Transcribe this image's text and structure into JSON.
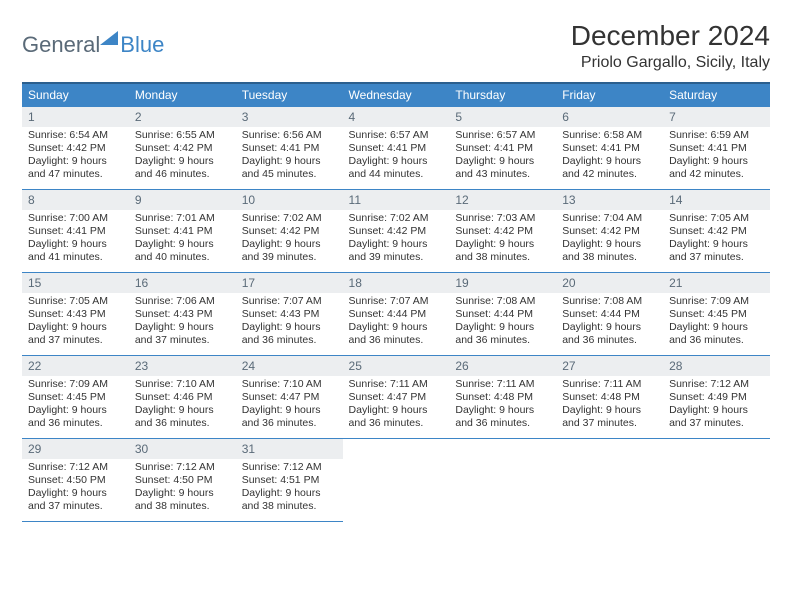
{
  "logo": {
    "text1": "General",
    "text2": "Blue"
  },
  "title": "December 2024",
  "location": "Priolo Gargallo, Sicily, Italy",
  "weekdays": [
    "Sunday",
    "Monday",
    "Tuesday",
    "Wednesday",
    "Thursday",
    "Friday",
    "Saturday"
  ],
  "colors": {
    "header_bg": "#3d85c6",
    "header_text": "#ffffff",
    "daynum_bg": "#eceef0",
    "daynum_text": "#5a6a78",
    "border": "#3d85c6",
    "body_text": "#333333"
  },
  "weeks": [
    [
      {
        "n": "1",
        "sr": "Sunrise: 6:54 AM",
        "ss": "Sunset: 4:42 PM",
        "d1": "Daylight: 9 hours",
        "d2": "and 47 minutes."
      },
      {
        "n": "2",
        "sr": "Sunrise: 6:55 AM",
        "ss": "Sunset: 4:42 PM",
        "d1": "Daylight: 9 hours",
        "d2": "and 46 minutes."
      },
      {
        "n": "3",
        "sr": "Sunrise: 6:56 AM",
        "ss": "Sunset: 4:41 PM",
        "d1": "Daylight: 9 hours",
        "d2": "and 45 minutes."
      },
      {
        "n": "4",
        "sr": "Sunrise: 6:57 AM",
        "ss": "Sunset: 4:41 PM",
        "d1": "Daylight: 9 hours",
        "d2": "and 44 minutes."
      },
      {
        "n": "5",
        "sr": "Sunrise: 6:57 AM",
        "ss": "Sunset: 4:41 PM",
        "d1": "Daylight: 9 hours",
        "d2": "and 43 minutes."
      },
      {
        "n": "6",
        "sr": "Sunrise: 6:58 AM",
        "ss": "Sunset: 4:41 PM",
        "d1": "Daylight: 9 hours",
        "d2": "and 42 minutes."
      },
      {
        "n": "7",
        "sr": "Sunrise: 6:59 AM",
        "ss": "Sunset: 4:41 PM",
        "d1": "Daylight: 9 hours",
        "d2": "and 42 minutes."
      }
    ],
    [
      {
        "n": "8",
        "sr": "Sunrise: 7:00 AM",
        "ss": "Sunset: 4:41 PM",
        "d1": "Daylight: 9 hours",
        "d2": "and 41 minutes."
      },
      {
        "n": "9",
        "sr": "Sunrise: 7:01 AM",
        "ss": "Sunset: 4:41 PM",
        "d1": "Daylight: 9 hours",
        "d2": "and 40 minutes."
      },
      {
        "n": "10",
        "sr": "Sunrise: 7:02 AM",
        "ss": "Sunset: 4:42 PM",
        "d1": "Daylight: 9 hours",
        "d2": "and 39 minutes."
      },
      {
        "n": "11",
        "sr": "Sunrise: 7:02 AM",
        "ss": "Sunset: 4:42 PM",
        "d1": "Daylight: 9 hours",
        "d2": "and 39 minutes."
      },
      {
        "n": "12",
        "sr": "Sunrise: 7:03 AM",
        "ss": "Sunset: 4:42 PM",
        "d1": "Daylight: 9 hours",
        "d2": "and 38 minutes."
      },
      {
        "n": "13",
        "sr": "Sunrise: 7:04 AM",
        "ss": "Sunset: 4:42 PM",
        "d1": "Daylight: 9 hours",
        "d2": "and 38 minutes."
      },
      {
        "n": "14",
        "sr": "Sunrise: 7:05 AM",
        "ss": "Sunset: 4:42 PM",
        "d1": "Daylight: 9 hours",
        "d2": "and 37 minutes."
      }
    ],
    [
      {
        "n": "15",
        "sr": "Sunrise: 7:05 AM",
        "ss": "Sunset: 4:43 PM",
        "d1": "Daylight: 9 hours",
        "d2": "and 37 minutes."
      },
      {
        "n": "16",
        "sr": "Sunrise: 7:06 AM",
        "ss": "Sunset: 4:43 PM",
        "d1": "Daylight: 9 hours",
        "d2": "and 37 minutes."
      },
      {
        "n": "17",
        "sr": "Sunrise: 7:07 AM",
        "ss": "Sunset: 4:43 PM",
        "d1": "Daylight: 9 hours",
        "d2": "and 36 minutes."
      },
      {
        "n": "18",
        "sr": "Sunrise: 7:07 AM",
        "ss": "Sunset: 4:44 PM",
        "d1": "Daylight: 9 hours",
        "d2": "and 36 minutes."
      },
      {
        "n": "19",
        "sr": "Sunrise: 7:08 AM",
        "ss": "Sunset: 4:44 PM",
        "d1": "Daylight: 9 hours",
        "d2": "and 36 minutes."
      },
      {
        "n": "20",
        "sr": "Sunrise: 7:08 AM",
        "ss": "Sunset: 4:44 PM",
        "d1": "Daylight: 9 hours",
        "d2": "and 36 minutes."
      },
      {
        "n": "21",
        "sr": "Sunrise: 7:09 AM",
        "ss": "Sunset: 4:45 PM",
        "d1": "Daylight: 9 hours",
        "d2": "and 36 minutes."
      }
    ],
    [
      {
        "n": "22",
        "sr": "Sunrise: 7:09 AM",
        "ss": "Sunset: 4:45 PM",
        "d1": "Daylight: 9 hours",
        "d2": "and 36 minutes."
      },
      {
        "n": "23",
        "sr": "Sunrise: 7:10 AM",
        "ss": "Sunset: 4:46 PM",
        "d1": "Daylight: 9 hours",
        "d2": "and 36 minutes."
      },
      {
        "n": "24",
        "sr": "Sunrise: 7:10 AM",
        "ss": "Sunset: 4:47 PM",
        "d1": "Daylight: 9 hours",
        "d2": "and 36 minutes."
      },
      {
        "n": "25",
        "sr": "Sunrise: 7:11 AM",
        "ss": "Sunset: 4:47 PM",
        "d1": "Daylight: 9 hours",
        "d2": "and 36 minutes."
      },
      {
        "n": "26",
        "sr": "Sunrise: 7:11 AM",
        "ss": "Sunset: 4:48 PM",
        "d1": "Daylight: 9 hours",
        "d2": "and 36 minutes."
      },
      {
        "n": "27",
        "sr": "Sunrise: 7:11 AM",
        "ss": "Sunset: 4:48 PM",
        "d1": "Daylight: 9 hours",
        "d2": "and 37 minutes."
      },
      {
        "n": "28",
        "sr": "Sunrise: 7:12 AM",
        "ss": "Sunset: 4:49 PM",
        "d1": "Daylight: 9 hours",
        "d2": "and 37 minutes."
      }
    ],
    [
      {
        "n": "29",
        "sr": "Sunrise: 7:12 AM",
        "ss": "Sunset: 4:50 PM",
        "d1": "Daylight: 9 hours",
        "d2": "and 37 minutes."
      },
      {
        "n": "30",
        "sr": "Sunrise: 7:12 AM",
        "ss": "Sunset: 4:50 PM",
        "d1": "Daylight: 9 hours",
        "d2": "and 38 minutes."
      },
      {
        "n": "31",
        "sr": "Sunrise: 7:12 AM",
        "ss": "Sunset: 4:51 PM",
        "d1": "Daylight: 9 hours",
        "d2": "and 38 minutes."
      },
      null,
      null,
      null,
      null
    ]
  ]
}
